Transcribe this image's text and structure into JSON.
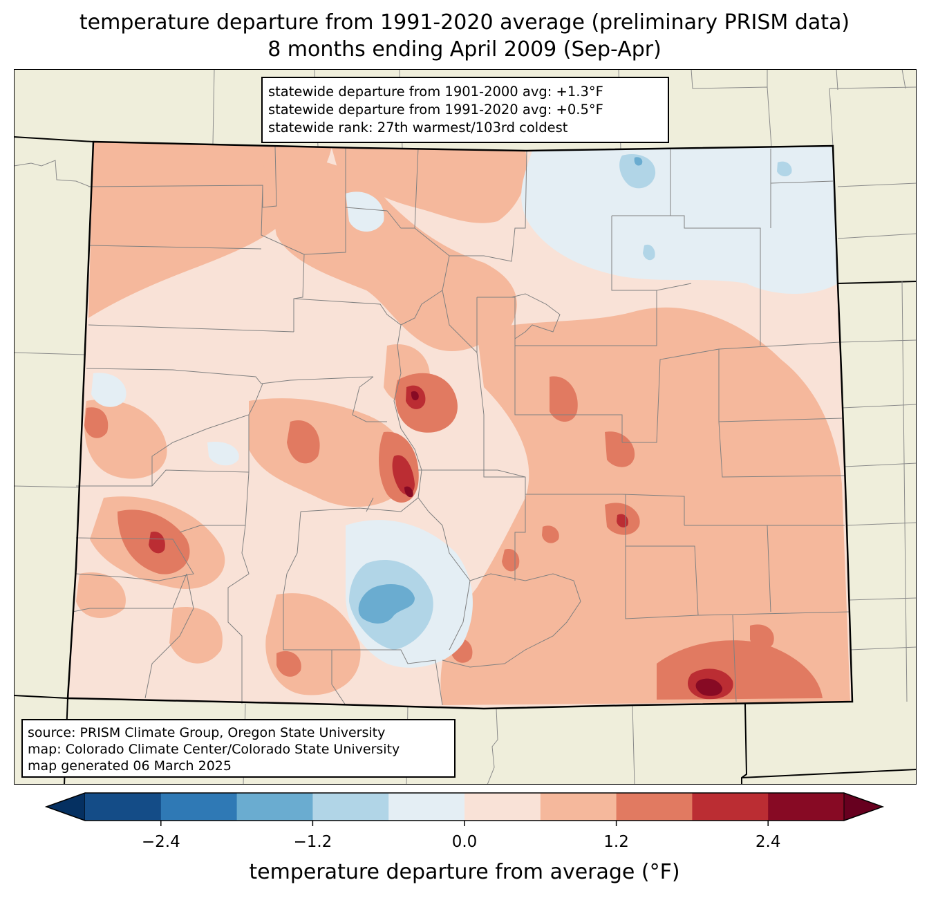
{
  "title": {
    "line1": "temperature departure from 1991-2020 average (preliminary PRISM data)",
    "line2": "8 months ending April 2009 (Sep-Apr)"
  },
  "stats": {
    "line1": "statewide departure from 1901-2000 avg: +1.3°F",
    "line2": "statewide departure from 1991-2020 avg: +0.5°F",
    "line3": "statewide rank: 27th warmest/103rd coldest"
  },
  "source": {
    "line1": "source: PRISM Climate Group, Oregon State University",
    "line2": "map: Colorado Climate Center/Colorado State University",
    "line3": "map generated 06 March 2025"
  },
  "colorbar": {
    "label": "temperature departure from average (°F)",
    "ticks": [
      "−2.4",
      "−1.2",
      "0.0",
      "1.2",
      "2.4"
    ],
    "tick_values": [
      -2.4,
      -1.2,
      0.0,
      1.2,
      2.4
    ],
    "range": [
      -3.0,
      3.0
    ],
    "step": 0.6,
    "colors": [
      "#053061",
      "#144c87",
      "#2f79b5",
      "#6aacd0",
      "#b1d5e7",
      "#e4eef4",
      "#f9e2d7",
      "#f5b89c",
      "#e17a61",
      "#bb2d33",
      "#870a24",
      "#67001f"
    ]
  },
  "colors": {
    "land": "#efeedb",
    "boundary": "#000000",
    "county": "#8a8a8a"
  }
}
